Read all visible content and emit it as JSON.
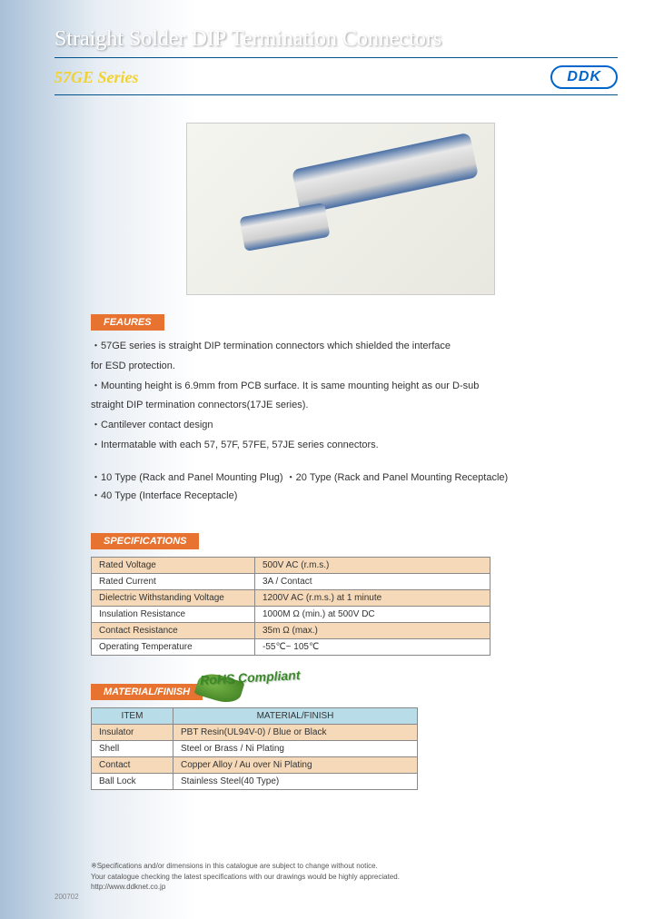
{
  "header": {
    "title": "Straight Solder DIP Termination Connectors",
    "series": "57GE Series",
    "logo": "DDK"
  },
  "features": {
    "label": "FEAURES",
    "items": [
      "・57GE series is straight DIP termination connectors which shielded the interface",
      "   for ESD protection.",
      "・Mounting height is 6.9mm from PCB surface. It is same mounting height as our D-sub",
      "   straight DIP termination connectors(17JE series).",
      "・Cantilever contact design",
      "・Intermatable with each 57, 57F, 57FE, 57JE series connectors."
    ],
    "types": [
      "・10 Type (Rack and Panel Mounting Plug)        ・20 Type (Rack and Panel Mounting Receptacle)",
      "・40 Type (Interface Receptacle)"
    ]
  },
  "specs": {
    "label": "SPECIFICATIONS",
    "rows": [
      {
        "name": "Rated Voltage",
        "value": "500V AC (r.m.s.)"
      },
      {
        "name": "Rated Current",
        "value": "3A / Contact"
      },
      {
        "name": "Dielectric Withstanding Voltage",
        "value": "1200V AC (r.m.s.) at 1 minute"
      },
      {
        "name": "Insulation Resistance",
        "value": "1000M Ω (min.) at 500V DC"
      },
      {
        "name": "Contact Resistance",
        "value": "35m Ω (max.)"
      },
      {
        "name": "Operating Temperature",
        "value": "-55℃~ 105℃"
      }
    ]
  },
  "material": {
    "label": "MATERIAL/FINISH",
    "rohs": "RoHS Compliant",
    "headers": {
      "item": "ITEM",
      "value": "MATERIAL/FINISH"
    },
    "rows": [
      {
        "item": "Insulator",
        "value": "PBT Resin(UL94V-0) / Blue or Black"
      },
      {
        "item": "Shell",
        "value": "Steel or Brass / Ni Plating"
      },
      {
        "item": "Contact",
        "value": "Copper Alloy / Au over Ni Plating"
      },
      {
        "item": "Ball Lock",
        "value": "Stainless Steel(40 Type)"
      }
    ]
  },
  "footer": {
    "note1": "※Specifications and/or dimensions in this catalogue are subject to change without notice.",
    "note2": "Your catalogue checking the latest specifications with our drawings would be highly appreciated.",
    "url": "http://www.ddknet.co.jp",
    "code": "200702"
  },
  "colors": {
    "label_bg": "#e8722f",
    "header_th_bg": "#b8dde8",
    "row_odd_bg": "#f5d9b8",
    "accent": "#0066cc",
    "series_color": "#f2d22e"
  }
}
